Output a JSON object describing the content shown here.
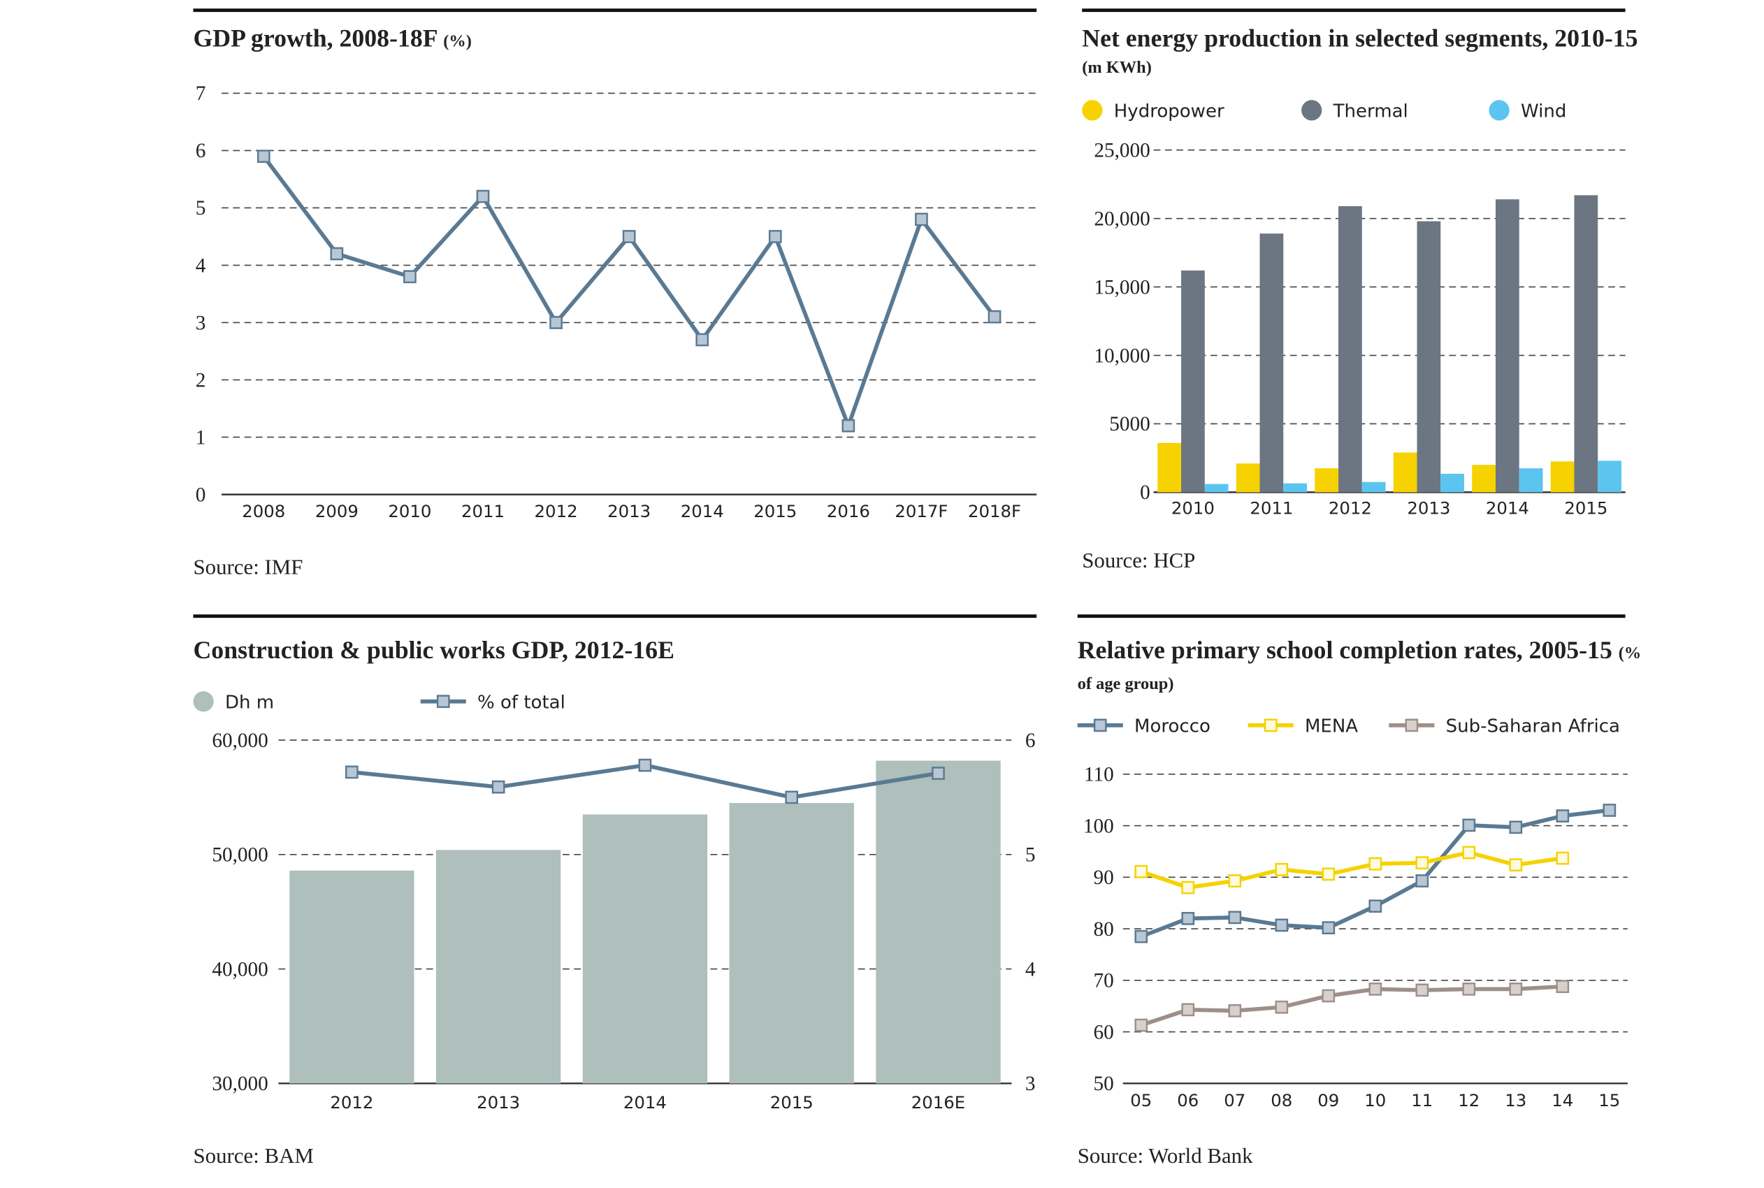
{
  "chart_data": [
    {
      "type": "line",
      "title": "GDP growth, 2008-18F",
      "subtitle": "(%)",
      "source": "Source: IMF",
      "categories": [
        "2008",
        "2009",
        "2010",
        "2011",
        "2012",
        "2013",
        "2014",
        "2015",
        "2016",
        "2017F",
        "2018F"
      ],
      "series": [
        {
          "color": "#5a7a93",
          "values": [
            5.9,
            4.2,
            3.8,
            5.2,
            3.0,
            4.5,
            2.7,
            4.5,
            1.2,
            4.8,
            3.1
          ]
        }
      ],
      "ylim": [
        0,
        7
      ],
      "yticks": [
        0,
        1,
        2,
        3,
        4,
        5,
        6,
        7
      ],
      "grid": true
    },
    {
      "type": "bar",
      "title": "Net energy production in selected segments, 2010-15",
      "subtitle": "(m KWh)",
      "source": "Source: HCP",
      "categories": [
        "2010",
        "2011",
        "2012",
        "2013",
        "2014",
        "2015"
      ],
      "series": [
        {
          "name": "Hydropower",
          "color": "#f5d200",
          "values": [
            3600,
            2100,
            1750,
            2900,
            2000,
            2250
          ]
        },
        {
          "name": "Thermal",
          "color": "#6b7682",
          "values": [
            16200,
            18900,
            20900,
            19800,
            21400,
            21700
          ]
        },
        {
          "name": "Wind",
          "color": "#5bc5ef",
          "values": [
            600,
            650,
            750,
            1350,
            1750,
            2300
          ]
        }
      ],
      "ylim": [
        0,
        25000
      ],
      "yticks": [
        0,
        5000,
        {
          "value": 10000,
          "label": "10,000"
        },
        {
          "value": 15000,
          "label": "15,000"
        },
        {
          "value": 20000,
          "label": "20,000"
        },
        {
          "value": 25000,
          "label": "25,000"
        }
      ],
      "grid": true
    },
    {
      "type": "bar",
      "title": "Construction & public works GDP, 2012-16E",
      "source": "Source: BAM",
      "categories": [
        "2012",
        "2013",
        "2014",
        "2015",
        "2016E"
      ],
      "series": [
        {
          "name": "Dh m",
          "color": "#aebfbc",
          "values": [
            48600,
            50400,
            53500,
            54500,
            58200
          ]
        },
        {
          "name": "% of total",
          "color": "#5a7a93",
          "type": "line",
          "axis": "y2",
          "values": [
            5.72,
            5.59,
            5.78,
            5.5,
            5.71
          ]
        }
      ],
      "ylim": [
        30000,
        60000
      ],
      "yticks": [
        {
          "value": 30000,
          "label": "30,000"
        },
        {
          "value": 40000,
          "label": "40,000"
        },
        {
          "value": 50000,
          "label": "50,000"
        },
        {
          "value": 60000,
          "label": "60,000"
        }
      ],
      "y2lim": [
        3,
        6
      ],
      "y2ticks": [
        3,
        4,
        5,
        6
      ],
      "grid": true
    },
    {
      "type": "line",
      "title": "Relative primary school completion rates, 2005-15",
      "subtitle": "(% of age group)",
      "source": "Source: World Bank",
      "categories": [
        "05",
        "06",
        "07",
        "08",
        "09",
        "10",
        "11",
        "12",
        "13",
        "14",
        "15"
      ],
      "series": [
        {
          "name": "Morocco",
          "color": "#5a7a93",
          "values": [
            78.5,
            82.0,
            82.2,
            80.7,
            80.2,
            84.4,
            89.3,
            100.1,
            99.7,
            101.9,
            103.0
          ]
        },
        {
          "name": "MENA",
          "color": "#f5d200",
          "values": [
            91.1,
            88.0,
            89.3,
            91.5,
            90.6,
            92.6,
            92.8,
            94.8,
            92.4,
            93.7,
            null
          ]
        },
        {
          "name": "Sub-Saharan Africa",
          "color": "#9e8f8a",
          "values": [
            61.3,
            64.3,
            64.1,
            64.8,
            67.0,
            68.3,
            68.1,
            68.3,
            68.3,
            68.8,
            null
          ]
        }
      ],
      "ylim": [
        50,
        110
      ],
      "yticks": [
        50,
        60,
        70,
        80,
        90,
        100,
        110
      ],
      "grid": true
    }
  ]
}
